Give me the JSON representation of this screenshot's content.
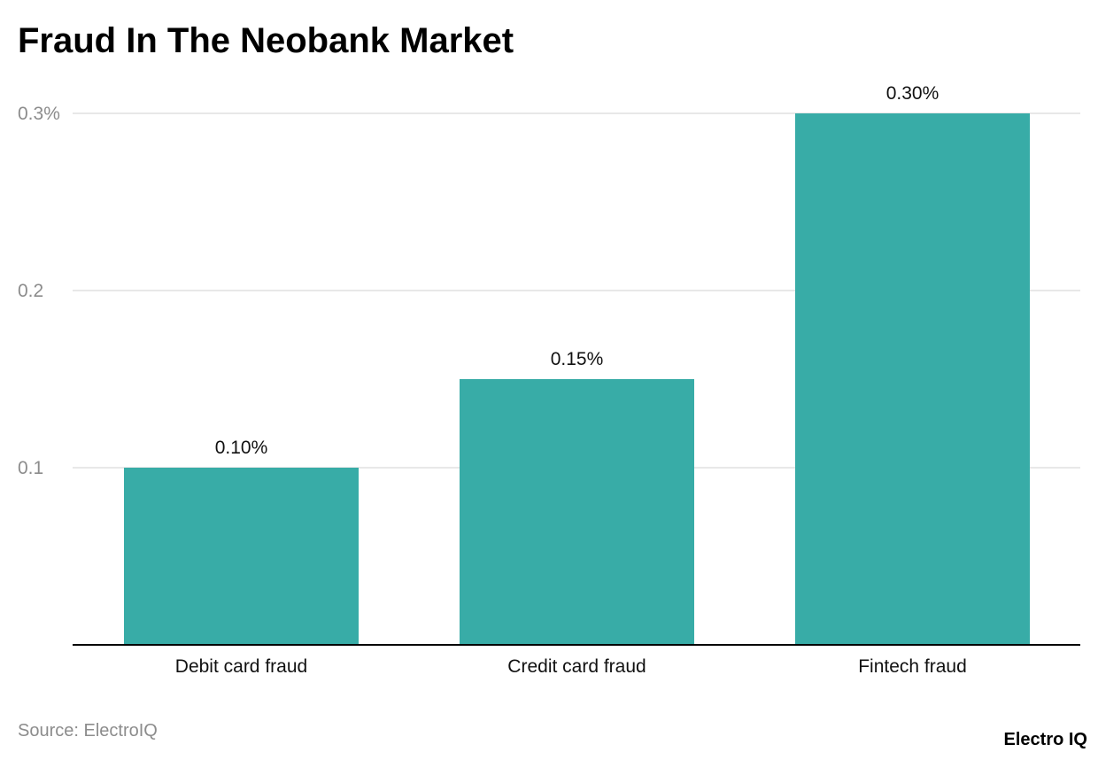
{
  "colors": {
    "bar": "#38aca7",
    "grid": "#e1e1e1",
    "axis": "#000000",
    "tick_text": "#8c8c8c",
    "label_text": "#111111"
  },
  "footer": {
    "source": "Source: ElectroIQ",
    "brand": "Electro IQ"
  },
  "chart_data": {
    "type": "bar",
    "title": "Fraud In The Neobank Market",
    "categories": [
      "Debit card fraud",
      "Credit card fraud",
      "Fintech fraud"
    ],
    "values": [
      0.1,
      0.15,
      0.3
    ],
    "data_labels": [
      "0.10%",
      "0.15%",
      "0.30%"
    ],
    "yticks": [
      {
        "value": 0.1,
        "label": "0.1"
      },
      {
        "value": 0.2,
        "label": "0.2"
      },
      {
        "value": 0.3,
        "label": "0.3%"
      }
    ],
    "ylim": [
      0,
      0.3
    ],
    "xlabel": "",
    "ylabel": "",
    "grid": true,
    "legend": "none"
  }
}
